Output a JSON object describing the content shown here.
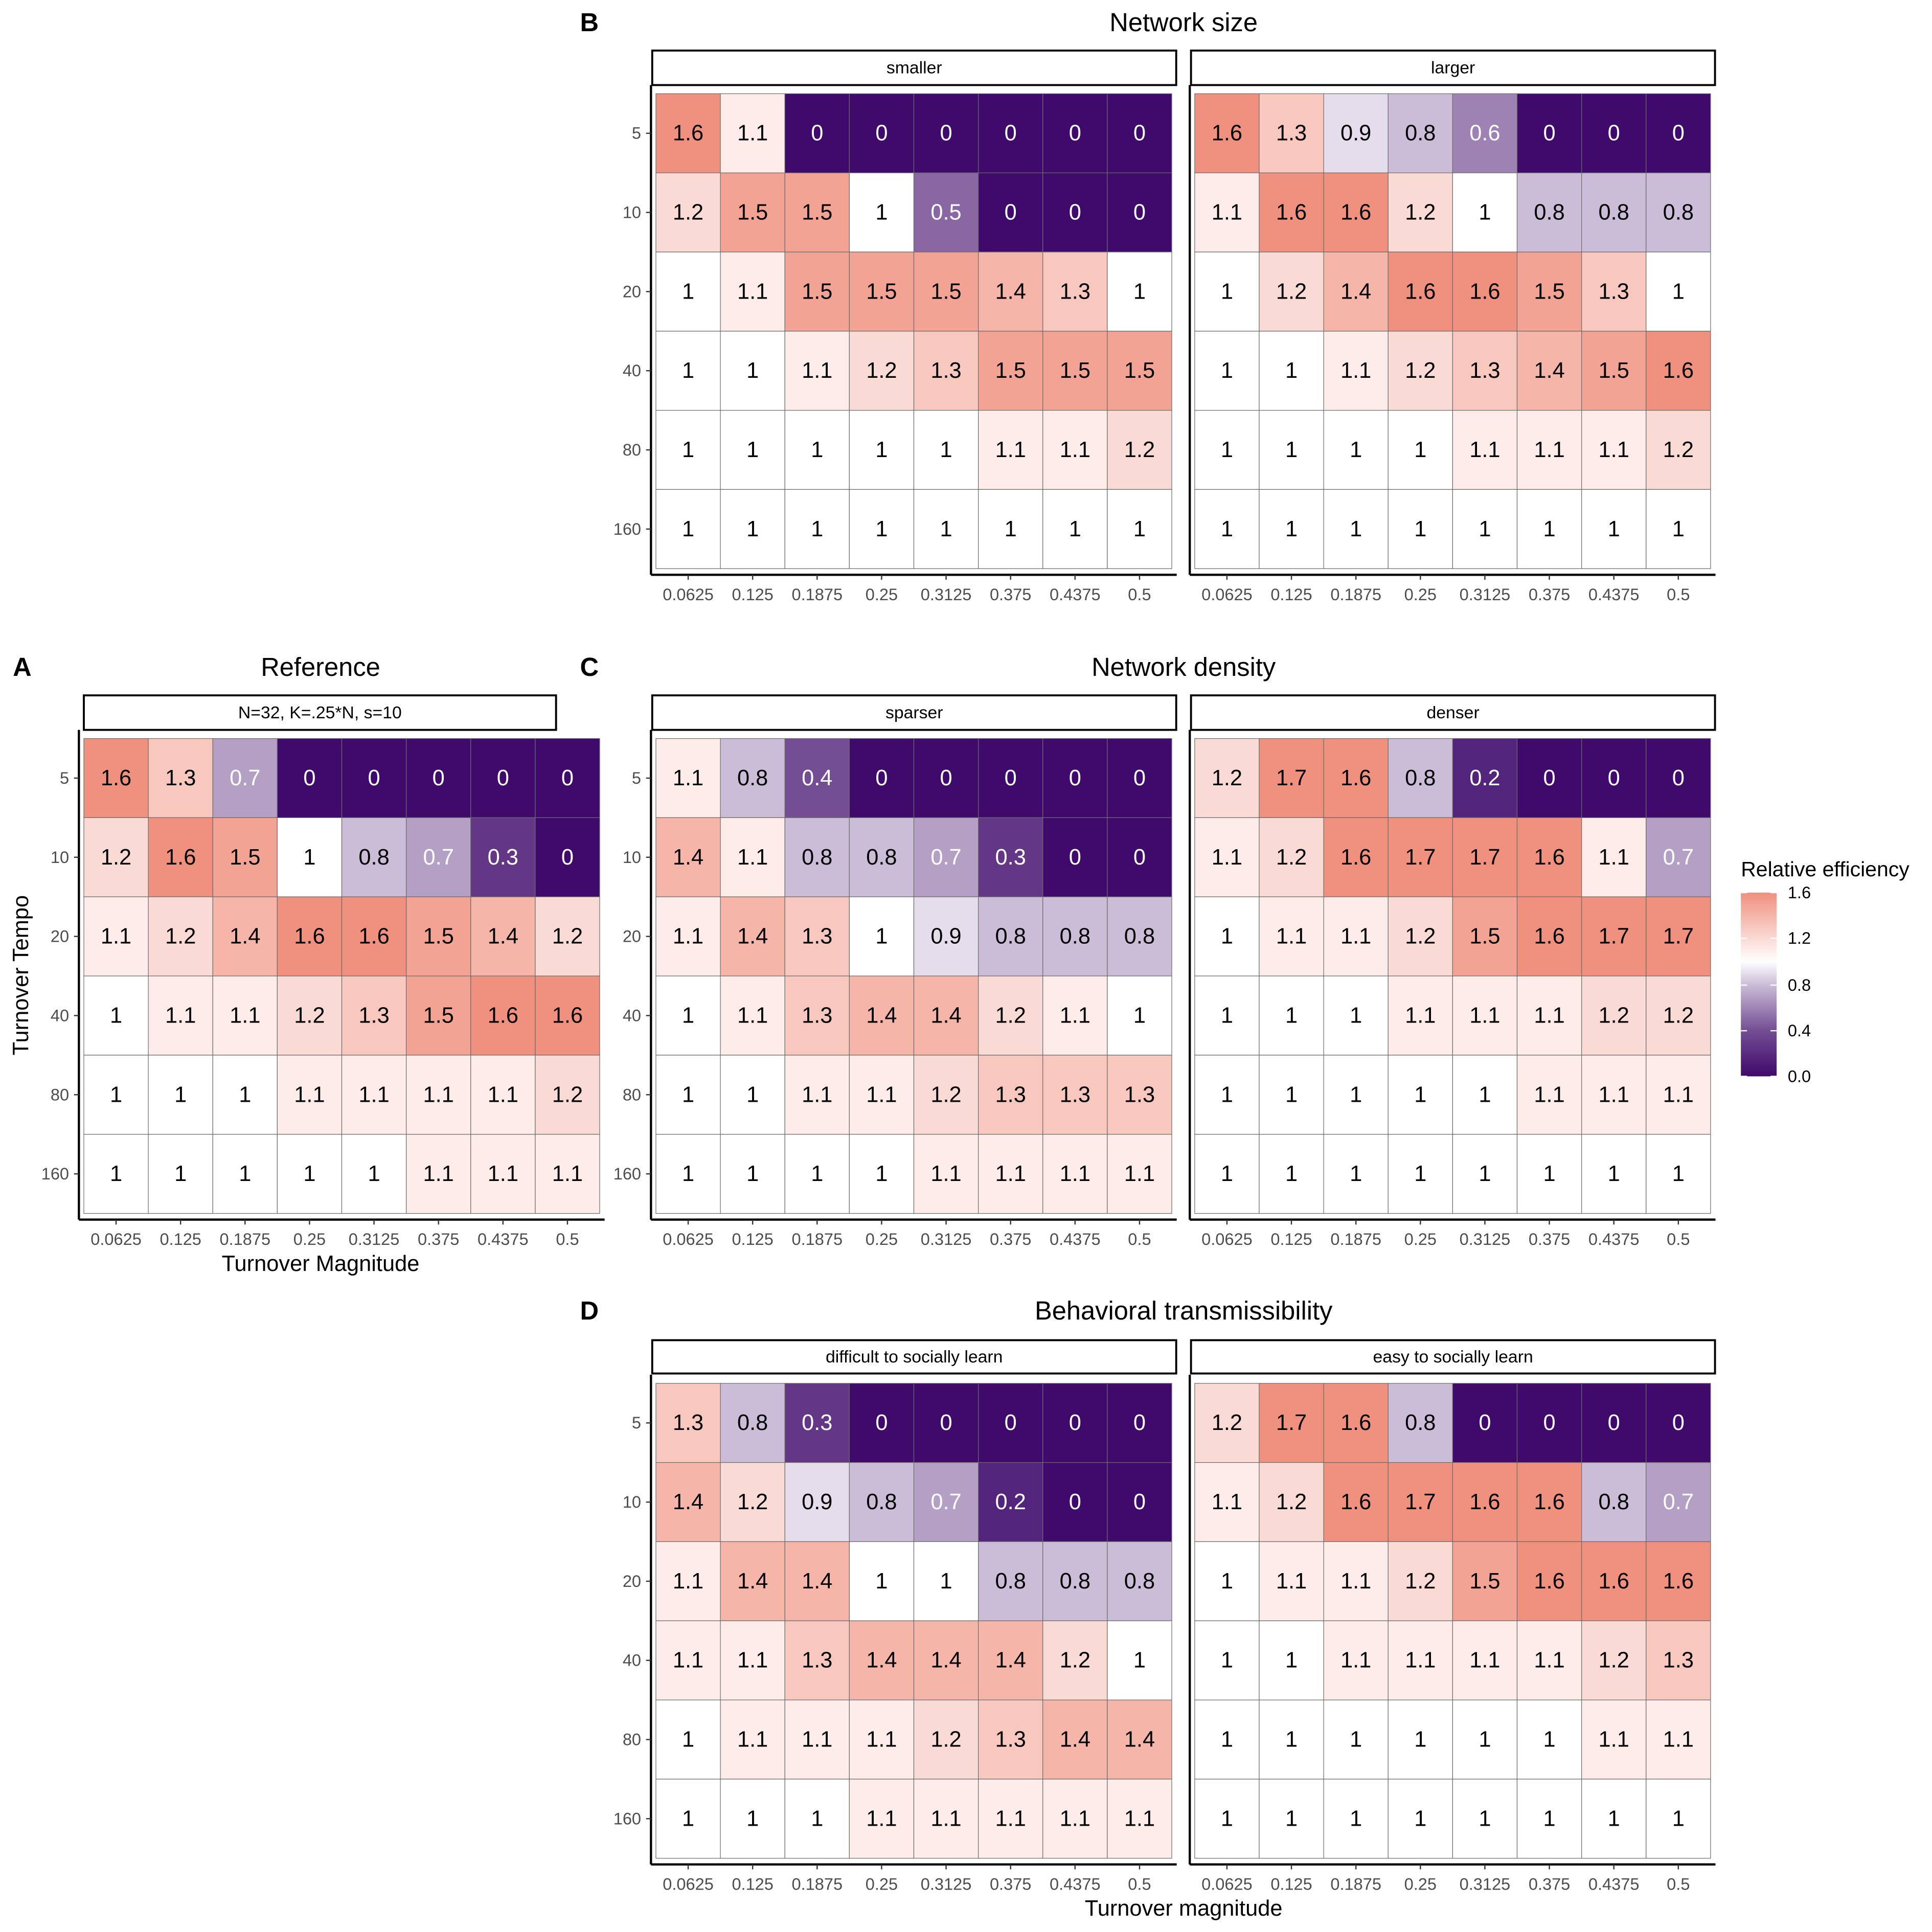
{
  "legend": {
    "title": "Relative efficiency",
    "ticks": [
      "1.6",
      "1.2",
      "0.8",
      "0.4",
      "0.0"
    ],
    "colors": {
      "low": "#3f0a6b",
      "mid": "#ffffff",
      "high": "#f0907e"
    }
  },
  "axes": {
    "rows": [
      "5",
      "10",
      "20",
      "40",
      "80",
      "160"
    ],
    "cols": [
      "0.0625",
      "0.125",
      "0.1875",
      "0.25",
      "0.3125",
      "0.375",
      "0.4375",
      "0.5"
    ]
  },
  "chart_data": [
    {
      "type": "heatmap",
      "panel": "A",
      "title": "Reference",
      "xlabel": "Turnover Magnitude",
      "ylabel": "Turnover Tempo",
      "facets": [
        {
          "label": "N=32, K=.25*N, s=10",
          "values": [
            [
              1.6,
              1.3,
              0.7,
              0,
              0,
              0,
              0,
              0
            ],
            [
              1.2,
              1.6,
              1.5,
              1,
              0.8,
              0.7,
              0.3,
              0
            ],
            [
              1.1,
              1.2,
              1.4,
              1.6,
              1.6,
              1.5,
              1.4,
              1.2
            ],
            [
              1,
              1.1,
              1.1,
              1.2,
              1.3,
              1.5,
              1.6,
              1.6
            ],
            [
              1,
              1,
              1,
              1.1,
              1.1,
              1.1,
              1.1,
              1.2
            ],
            [
              1,
              1,
              1,
              1,
              1,
              1.1,
              1.1,
              1.1
            ]
          ]
        }
      ]
    },
    {
      "type": "heatmap",
      "panel": "B",
      "title": "Network size",
      "xlabel": "",
      "ylabel": "",
      "facets": [
        {
          "label": "smaller",
          "values": [
            [
              1.6,
              1.1,
              0,
              0,
              0,
              0,
              0,
              0
            ],
            [
              1.2,
              1.5,
              1.5,
              1,
              0.5,
              0,
              0,
              0
            ],
            [
              1,
              1.1,
              1.5,
              1.5,
              1.5,
              1.4,
              1.3,
              1
            ],
            [
              1,
              1,
              1.1,
              1.2,
              1.3,
              1.5,
              1.5,
              1.5
            ],
            [
              1,
              1,
              1,
              1,
              1,
              1.1,
              1.1,
              1.2
            ],
            [
              1,
              1,
              1,
              1,
              1,
              1,
              1,
              1
            ]
          ]
        },
        {
          "label": "larger",
          "values": [
            [
              1.6,
              1.3,
              0.9,
              0.8,
              0.6,
              0,
              0,
              0
            ],
            [
              1.1,
              1.6,
              1.6,
              1.2,
              1,
              0.8,
              0.8,
              0.8
            ],
            [
              1,
              1.2,
              1.4,
              1.6,
              1.6,
              1.5,
              1.3,
              1
            ],
            [
              1,
              1,
              1.1,
              1.2,
              1.3,
              1.4,
              1.5,
              1.6
            ],
            [
              1,
              1,
              1,
              1,
              1.1,
              1.1,
              1.1,
              1.2
            ],
            [
              1,
              1,
              1,
              1,
              1,
              1,
              1,
              1
            ]
          ]
        }
      ]
    },
    {
      "type": "heatmap",
      "panel": "C",
      "title": "Network density",
      "xlabel": "",
      "ylabel": "",
      "facets": [
        {
          "label": "sparser",
          "values": [
            [
              1.1,
              0.8,
              0.4,
              0,
              0,
              0,
              0,
              0
            ],
            [
              1.4,
              1.1,
              0.8,
              0.8,
              0.7,
              0.3,
              0,
              0
            ],
            [
              1.1,
              1.4,
              1.3,
              1,
              0.9,
              0.8,
              0.8,
              0.8
            ],
            [
              1,
              1.1,
              1.3,
              1.4,
              1.4,
              1.2,
              1.1,
              1
            ],
            [
              1,
              1,
              1.1,
              1.1,
              1.2,
              1.3,
              1.3,
              1.3
            ],
            [
              1,
              1,
              1,
              1,
              1.1,
              1.1,
              1.1,
              1.1
            ]
          ]
        },
        {
          "label": "denser",
          "values": [
            [
              1.2,
              1.7,
              1.6,
              0.8,
              0.2,
              0,
              0,
              0
            ],
            [
              1.1,
              1.2,
              1.6,
              1.7,
              1.7,
              1.6,
              1.1,
              0.7
            ],
            [
              1,
              1.1,
              1.1,
              1.2,
              1.5,
              1.6,
              1.7,
              1.7
            ],
            [
              1,
              1,
              1,
              1.1,
              1.1,
              1.1,
              1.2,
              1.2
            ],
            [
              1,
              1,
              1,
              1,
              1,
              1.1,
              1.1,
              1.1
            ],
            [
              1,
              1,
              1,
              1,
              1,
              1,
              1,
              1
            ]
          ]
        }
      ]
    },
    {
      "type": "heatmap",
      "panel": "D",
      "title": "Behavioral transmissibility",
      "xlabel": "Turnover magnitude",
      "ylabel": "",
      "facets": [
        {
          "label": "difficult to socially learn",
          "values": [
            [
              1.3,
              0.8,
              0.3,
              0,
              0,
              0,
              0,
              0
            ],
            [
              1.4,
              1.2,
              0.9,
              0.8,
              0.7,
              0.2,
              0,
              0
            ],
            [
              1.1,
              1.4,
              1.4,
              1,
              1,
              0.8,
              0.8,
              0.8
            ],
            [
              1.1,
              1.1,
              1.3,
              1.4,
              1.4,
              1.4,
              1.2,
              1
            ],
            [
              1,
              1.1,
              1.1,
              1.1,
              1.2,
              1.3,
              1.4,
              1.4
            ],
            [
              1,
              1,
              1,
              1.1,
              1.1,
              1.1,
              1.1,
              1.1
            ]
          ]
        },
        {
          "label": "easy to socially learn",
          "values": [
            [
              1.2,
              1.7,
              1.6,
              0.8,
              0,
              0,
              0,
              0
            ],
            [
              1.1,
              1.2,
              1.6,
              1.7,
              1.6,
              1.6,
              0.8,
              0.7
            ],
            [
              1,
              1.1,
              1.1,
              1.2,
              1.5,
              1.6,
              1.6,
              1.6
            ],
            [
              1,
              1,
              1.1,
              1.1,
              1.1,
              1.1,
              1.2,
              1.3
            ],
            [
              1,
              1,
              1,
              1,
              1,
              1,
              1.1,
              1.1
            ],
            [
              1,
              1,
              1,
              1,
              1,
              1,
              1,
              1
            ]
          ]
        }
      ]
    }
  ]
}
